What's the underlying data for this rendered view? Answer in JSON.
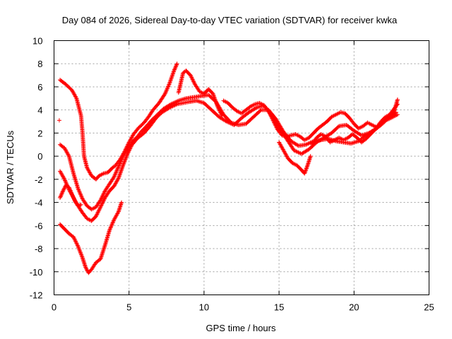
{
  "chart_data": {
    "type": "scatter",
    "title": "Day 084 of 2026, Sidereal Day-to-day VTEC variation (SDTVAR) for receiver kwka",
    "xlabel": "GPS time / hours",
    "ylabel": "SDTVAR / TECUs",
    "xlim": [
      0,
      25
    ],
    "ylim": [
      -12,
      10
    ],
    "xticks": [
      0,
      5,
      10,
      15,
      20,
      25
    ],
    "yticks": [
      -12,
      -10,
      -8,
      -6,
      -4,
      -2,
      0,
      2,
      4,
      6,
      8,
      10
    ],
    "grid": true,
    "marker": "plus",
    "color": "#ff0000",
    "series": [
      {
        "points": [
          [
            0.4,
            6.6
          ],
          [
            0.8,
            6.2
          ],
          [
            1.2,
            5.7
          ],
          [
            1.5,
            5.0
          ],
          [
            1.8,
            3.5
          ],
          [
            1.9,
            2.0
          ],
          [
            2.0,
            0.0
          ],
          [
            2.2,
            -1.0
          ],
          [
            2.5,
            -1.7
          ],
          [
            2.8,
            -2.0
          ],
          [
            3.0,
            -1.7
          ],
          [
            3.3,
            -1.5
          ],
          [
            3.6,
            -1.4
          ],
          [
            3.9,
            -1.0
          ],
          [
            4.1,
            -0.8
          ],
          [
            4.4,
            -0.3
          ],
          [
            4.7,
            0.4
          ],
          [
            5.0,
            1.2
          ],
          [
            5.3,
            1.9
          ],
          [
            5.6,
            2.4
          ],
          [
            6.0,
            2.9
          ],
          [
            6.3,
            3.4
          ],
          [
            6.6,
            4.0
          ],
          [
            7.0,
            4.6
          ],
          [
            7.4,
            5.4
          ],
          [
            7.7,
            6.3
          ],
          [
            8.0,
            7.4
          ],
          [
            8.2,
            8.0
          ]
        ]
      },
      {
        "points": [
          [
            0.4,
            1.0
          ],
          [
            0.7,
            0.7
          ],
          [
            1.0,
            0.0
          ],
          [
            1.3,
            -1.5
          ],
          [
            1.6,
            -2.8
          ],
          [
            1.9,
            -3.7
          ],
          [
            2.2,
            -4.3
          ],
          [
            2.5,
            -4.6
          ],
          [
            2.8,
            -4.4
          ],
          [
            3.1,
            -3.8
          ],
          [
            3.4,
            -3.0
          ],
          [
            3.7,
            -2.4
          ],
          [
            4.0,
            -1.8
          ],
          [
            4.3,
            -0.9
          ],
          [
            4.6,
            0.0
          ],
          [
            4.9,
            0.7
          ],
          [
            5.2,
            1.2
          ],
          [
            5.5,
            1.6
          ],
          [
            5.8,
            2.1
          ],
          [
            6.1,
            2.5
          ],
          [
            6.5,
            3.1
          ],
          [
            6.9,
            3.6
          ],
          [
            7.3,
            4.1
          ],
          [
            7.8,
            4.5
          ],
          [
            8.3,
            4.8
          ],
          [
            8.8,
            5.0
          ],
          [
            9.3,
            5.1
          ],
          [
            9.8,
            5.2
          ],
          [
            10.3,
            5.3
          ],
          [
            10.8,
            4.7
          ],
          [
            11.3,
            3.6
          ],
          [
            11.8,
            2.9
          ],
          [
            12.3,
            2.7
          ],
          [
            12.8,
            2.8
          ],
          [
            13.3,
            3.4
          ],
          [
            13.8,
            4.0
          ],
          [
            14.3,
            4.0
          ],
          [
            14.8,
            3.2
          ],
          [
            15.3,
            2.1
          ],
          [
            15.8,
            1.3
          ],
          [
            16.3,
            0.9
          ],
          [
            16.8,
            1.0
          ],
          [
            17.3,
            1.3
          ],
          [
            17.8,
            1.4
          ],
          [
            18.3,
            1.5
          ],
          [
            18.8,
            1.3
          ],
          [
            19.3,
            1.2
          ],
          [
            19.8,
            1.1
          ],
          [
            20.3,
            1.3
          ],
          [
            20.8,
            1.8
          ],
          [
            21.3,
            2.2
          ],
          [
            21.8,
            2.7
          ],
          [
            22.3,
            3.3
          ],
          [
            22.8,
            3.8
          ]
        ]
      },
      {
        "points": [
          [
            0.4,
            -1.3
          ],
          [
            0.7,
            -2.0
          ],
          [
            1.0,
            -2.9
          ],
          [
            1.3,
            -3.6
          ],
          [
            1.6,
            -4.3
          ],
          [
            1.9,
            -4.9
          ],
          [
            2.2,
            -5.4
          ],
          [
            2.5,
            -5.6
          ],
          [
            2.8,
            -5.2
          ],
          [
            3.1,
            -4.4
          ],
          [
            3.4,
            -3.6
          ],
          [
            3.7,
            -3.0
          ],
          [
            4.0,
            -2.6
          ],
          [
            4.3,
            -1.9
          ],
          [
            4.6,
            -0.8
          ],
          [
            4.9,
            0.2
          ],
          [
            5.2,
            1.0
          ],
          [
            5.6,
            1.6
          ],
          [
            6.0,
            2.0
          ],
          [
            6.4,
            2.6
          ],
          [
            6.8,
            3.3
          ],
          [
            7.2,
            3.8
          ],
          [
            7.7,
            4.2
          ],
          [
            8.2,
            4.5
          ],
          [
            8.6,
            4.6
          ],
          [
            9.0,
            4.7
          ],
          [
            9.5,
            4.8
          ],
          [
            10.0,
            4.6
          ],
          [
            10.5,
            4.0
          ],
          [
            11.0,
            3.4
          ],
          [
            11.5,
            3.0
          ],
          [
            12.0,
            2.7
          ],
          [
            12.5,
            3.3
          ],
          [
            13.0,
            3.8
          ],
          [
            13.5,
            4.2
          ],
          [
            14.0,
            4.4
          ],
          [
            14.5,
            3.5
          ],
          [
            15.0,
            2.5
          ],
          [
            15.5,
            1.5
          ],
          [
            16.0,
            0.5
          ],
          [
            16.5,
            0.2
          ],
          [
            17.0,
            0.6
          ],
          [
            17.5,
            1.2
          ],
          [
            18.0,
            1.6
          ],
          [
            18.5,
            2.0
          ],
          [
            19.0,
            2.6
          ],
          [
            19.5,
            2.7
          ],
          [
            20.0,
            2.2
          ],
          [
            20.5,
            1.8
          ],
          [
            21.0,
            2.0
          ],
          [
            21.5,
            2.4
          ],
          [
            22.0,
            3.0
          ],
          [
            22.5,
            3.8
          ],
          [
            22.9,
            4.5
          ]
        ]
      },
      {
        "points": [
          [
            0.4,
            -3.6
          ],
          [
            0.6,
            -3.0
          ],
          [
            0.8,
            -2.5
          ],
          [
            1.0,
            -2.7
          ],
          [
            1.2,
            -3.3
          ],
          [
            1.4,
            -3.9
          ],
          [
            1.6,
            -4.3
          ],
          [
            1.8,
            -4.2
          ]
        ]
      },
      {
        "points": [
          [
            0.4,
            -5.9
          ],
          [
            0.7,
            -6.3
          ],
          [
            1.0,
            -6.7
          ],
          [
            1.3,
            -7.0
          ],
          [
            1.6,
            -7.8
          ],
          [
            1.9,
            -8.8
          ],
          [
            2.1,
            -9.6
          ],
          [
            2.3,
            -10.1
          ],
          [
            2.5,
            -9.8
          ],
          [
            2.8,
            -9.2
          ],
          [
            3.1,
            -8.9
          ],
          [
            3.4,
            -7.7
          ],
          [
            3.7,
            -6.4
          ],
          [
            4.0,
            -5.5
          ],
          [
            4.3,
            -4.8
          ],
          [
            4.5,
            -4.0
          ]
        ]
      },
      {
        "points": [
          [
            0.35,
            3.1
          ]
        ]
      },
      {
        "points": [
          [
            8.3,
            5.5
          ],
          [
            8.6,
            7.2
          ],
          [
            8.8,
            7.4
          ],
          [
            9.1,
            7.0
          ],
          [
            9.4,
            6.2
          ],
          [
            9.7,
            5.6
          ],
          [
            10.0,
            5.4
          ],
          [
            10.3,
            5.8
          ],
          [
            10.6,
            5.4
          ],
          [
            10.9,
            4.3
          ],
          [
            11.2,
            3.5
          ]
        ]
      },
      {
        "points": [
          [
            11.3,
            4.8
          ],
          [
            11.6,
            4.6
          ],
          [
            11.9,
            4.2
          ],
          [
            12.2,
            3.9
          ],
          [
            12.5,
            3.7
          ],
          [
            12.8,
            4.0
          ],
          [
            13.1,
            4.3
          ],
          [
            13.4,
            4.5
          ],
          [
            13.7,
            4.6
          ],
          [
            14.0,
            4.4
          ],
          [
            14.3,
            3.9
          ],
          [
            14.6,
            3.1
          ],
          [
            14.9,
            2.3
          ],
          [
            15.2,
            1.8
          ],
          [
            15.5,
            1.7
          ],
          [
            15.8,
            1.8
          ],
          [
            16.1,
            1.9
          ],
          [
            16.4,
            1.7
          ],
          [
            16.7,
            1.4
          ],
          [
            17.0,
            1.6
          ],
          [
            17.3,
            2.0
          ],
          [
            17.6,
            2.4
          ],
          [
            17.9,
            2.7
          ],
          [
            18.2,
            3.0
          ],
          [
            18.5,
            3.4
          ],
          [
            18.8,
            3.6
          ],
          [
            19.1,
            3.8
          ],
          [
            19.4,
            3.7
          ],
          [
            19.7,
            3.3
          ],
          [
            20.0,
            2.8
          ],
          [
            20.3,
            2.4
          ],
          [
            20.6,
            2.6
          ],
          [
            20.9,
            2.9
          ],
          [
            21.2,
            2.7
          ],
          [
            21.5,
            2.5
          ],
          [
            21.8,
            3.0
          ],
          [
            22.1,
            3.4
          ],
          [
            22.4,
            3.6
          ],
          [
            22.7,
            4.0
          ],
          [
            22.9,
            4.9
          ]
        ]
      },
      {
        "points": [
          [
            15.0,
            1.2
          ],
          [
            15.3,
            0.5
          ],
          [
            15.6,
            -0.2
          ],
          [
            15.9,
            -0.6
          ],
          [
            16.2,
            -0.8
          ],
          [
            16.5,
            -1.2
          ],
          [
            16.7,
            -1.5
          ],
          [
            16.9,
            -0.8
          ],
          [
            17.1,
            0.0
          ]
        ]
      },
      {
        "points": [
          [
            17.2,
            1.0
          ],
          [
            17.5,
            1.6
          ],
          [
            17.8,
            1.9
          ],
          [
            18.1,
            1.7
          ],
          [
            18.4,
            1.2
          ],
          [
            18.7,
            1.4
          ],
          [
            19.0,
            1.6
          ],
          [
            19.3,
            1.4
          ],
          [
            19.6,
            1.6
          ],
          [
            19.9,
            1.9
          ],
          [
            20.2,
            1.6
          ],
          [
            20.5,
            1.2
          ],
          [
            20.8,
            1.5
          ],
          [
            21.1,
            1.9
          ],
          [
            21.4,
            2.3
          ],
          [
            21.7,
            2.7
          ],
          [
            22.0,
            3.1
          ],
          [
            22.3,
            3.2
          ],
          [
            22.6,
            3.4
          ],
          [
            22.9,
            3.6
          ]
        ]
      }
    ]
  }
}
